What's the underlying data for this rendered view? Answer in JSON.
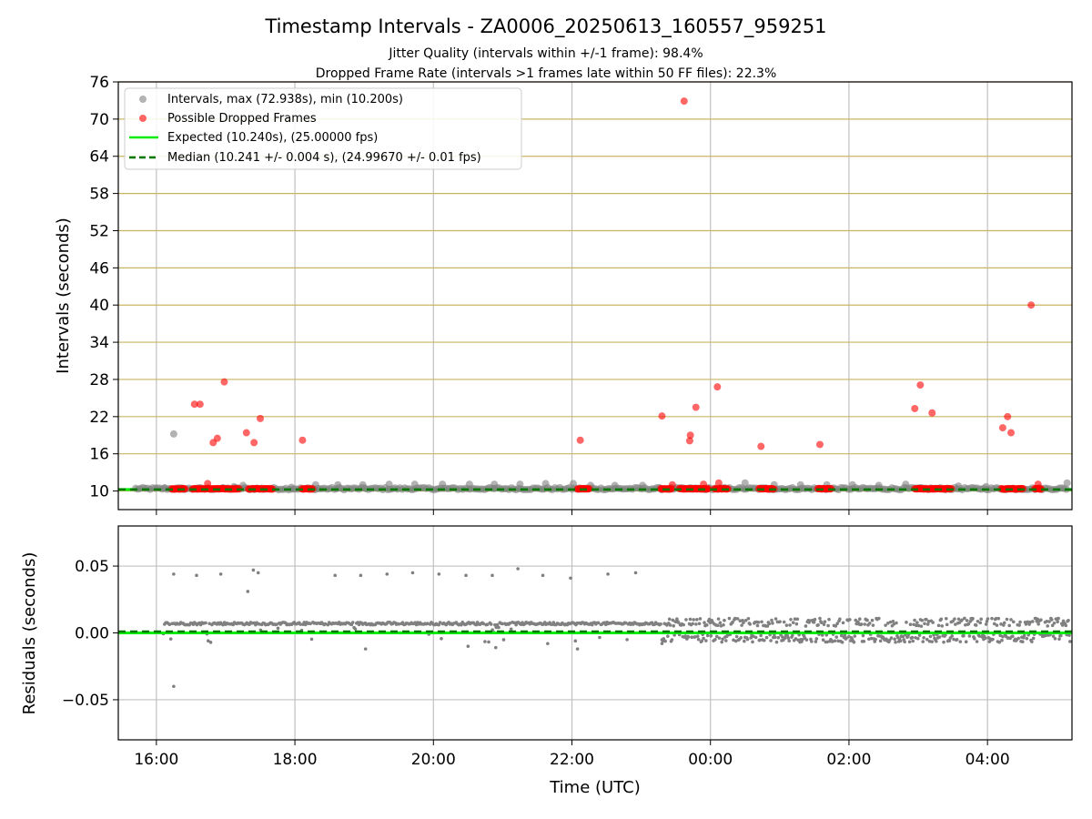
{
  "title": "Timestamp Intervals - ZA0006_20250613_160557_959251",
  "subtitle_1": "Jitter Quality (intervals within +/-1 frame): 98.4%",
  "subtitle_2": "Dropped Frame Rate (intervals >1 frames late within 50 FF files): 22.3%",
  "colors": {
    "intervals": "#808080",
    "dropped": "#ff0000",
    "expected": "#00ee00",
    "median": "#007700",
    "hgrid": "#c8b560",
    "vgrid": "#c0c0c0"
  },
  "chart_data": [
    {
      "type": "scatter",
      "panel": "intervals",
      "xlabel": "",
      "ylabel": "Intervals (seconds)",
      "x_unit": "hours since 00:00 UTC on the first day",
      "xlim": [
        15.45,
        29.22
      ],
      "ylim": [
        7,
        76
      ],
      "x_ticks": [
        16,
        18,
        20,
        22,
        24,
        26,
        28
      ],
      "x_tick_labels": [
        "16:00",
        "18:00",
        "20:00",
        "22:00",
        "00:00",
        "02:00",
        "04:00"
      ],
      "y_ticks": [
        10,
        16,
        22,
        28,
        34,
        40,
        46,
        52,
        58,
        64,
        70,
        76
      ],
      "y_tick_labels": [
        "10",
        "16",
        "22",
        "28",
        "34",
        "40",
        "46",
        "52",
        "58",
        "64",
        "70",
        "76"
      ],
      "grid": true,
      "legend_position": "top-left",
      "legend": [
        {
          "label": "Intervals, max (72.938s), min (10.200s)",
          "kind": "dot",
          "color": "#808080"
        },
        {
          "label": "Possible Dropped Frames",
          "kind": "dot",
          "color": "#ff0000"
        },
        {
          "label": "Expected (10.240s), (25.00000 fps)",
          "kind": "line",
          "color": "#00ee00"
        },
        {
          "label": "Median (10.241 +/- 0.004 s), (24.99670 +/- 0.01 fps)",
          "kind": "dash",
          "color": "#007700"
        }
      ],
      "expected": 10.24,
      "median": 10.241,
      "dropped_points": [
        [
          16.55,
          24.0
        ],
        [
          16.63,
          24.0
        ],
        [
          16.74,
          11.2
        ],
        [
          16.82,
          17.8
        ],
        [
          16.88,
          18.5
        ],
        [
          16.98,
          27.6
        ],
        [
          17.3,
          19.4
        ],
        [
          17.41,
          17.8
        ],
        [
          17.5,
          21.7
        ],
        [
          18.11,
          18.2
        ],
        [
          22.12,
          18.2
        ],
        [
          23.3,
          22.1
        ],
        [
          23.45,
          11.0
        ],
        [
          23.62,
          72.9
        ],
        [
          23.71,
          19.0
        ],
        [
          23.7,
          18.1
        ],
        [
          23.79,
          23.5
        ],
        [
          23.9,
          11.1
        ],
        [
          24.1,
          26.8
        ],
        [
          24.12,
          11.3
        ],
        [
          24.73,
          17.2
        ],
        [
          25.58,
          17.5
        ],
        [
          26.95,
          23.3
        ],
        [
          27.03,
          27.1
        ],
        [
          27.2,
          22.6
        ],
        [
          28.22,
          20.2
        ],
        [
          28.29,
          22.0
        ],
        [
          28.34,
          19.4
        ],
        [
          28.63,
          40.0
        ],
        [
          28.73,
          11.1
        ]
      ],
      "dropped_bands": [
        [
          16.22,
          16.42
        ],
        [
          16.52,
          17.2
        ],
        [
          17.33,
          17.68
        ],
        [
          18.1,
          18.26
        ],
        [
          22.08,
          22.25
        ],
        [
          23.28,
          23.44
        ],
        [
          23.55,
          23.98
        ],
        [
          24.06,
          24.26
        ],
        [
          24.7,
          24.92
        ],
        [
          25.55,
          25.75
        ],
        [
          26.95,
          27.48
        ],
        [
          28.2,
          28.52
        ],
        [
          28.68,
          28.78
        ]
      ],
      "gray_points": [
        [
          16.25,
          19.2
        ],
        [
          16.12,
          10.5
        ],
        [
          17.12,
          10.7
        ],
        [
          17.25,
          10.9
        ],
        [
          17.95,
          10.6
        ],
        [
          18.3,
          11.0
        ],
        [
          18.62,
          11.0
        ],
        [
          18.98,
          11.0
        ],
        [
          19.36,
          11.1
        ],
        [
          19.73,
          11.1
        ],
        [
          20.13,
          11.1
        ],
        [
          20.52,
          11.1
        ],
        [
          20.88,
          11.1
        ],
        [
          21.25,
          11.1
        ],
        [
          21.62,
          11.2
        ],
        [
          22.02,
          11.2
        ],
        [
          22.27,
          10.9
        ],
        [
          22.62,
          10.9
        ],
        [
          23.02,
          10.9
        ],
        [
          24.5,
          11.3
        ],
        [
          24.92,
          11.0
        ],
        [
          25.3,
          11.0
        ],
        [
          25.68,
          11.0
        ],
        [
          26.05,
          11.0
        ],
        [
          26.43,
          10.9
        ],
        [
          26.82,
          11.1
        ],
        [
          27.58,
          10.8
        ],
        [
          27.98,
          10.7
        ],
        [
          29.15,
          11.3
        ]
      ]
    },
    {
      "type": "scatter",
      "panel": "residuals",
      "xlabel": "Time (UTC)",
      "ylabel": "Residuals (seconds)",
      "xlim": [
        15.45,
        29.22
      ],
      "ylim": [
        -0.08,
        0.08
      ],
      "y_ticks": [
        0.05,
        0.0,
        -0.05
      ],
      "y_tick_labels": [
        "0.05",
        "0.00",
        "−0.05"
      ],
      "expected": 0.0,
      "median": 0.001,
      "outliers": [
        [
          16.25,
          0.044
        ],
        [
          16.58,
          0.043
        ],
        [
          16.93,
          0.044
        ],
        [
          17.4,
          0.047
        ],
        [
          17.47,
          0.045
        ],
        [
          17.32,
          0.031
        ],
        [
          16.25,
          -0.04
        ],
        [
          18.58,
          0.043
        ],
        [
          18.95,
          0.043
        ],
        [
          19.33,
          0.044
        ],
        [
          19.7,
          0.045
        ],
        [
          20.08,
          0.044
        ],
        [
          20.47,
          0.043
        ],
        [
          20.85,
          0.043
        ],
        [
          21.22,
          0.048
        ],
        [
          21.58,
          0.043
        ],
        [
          21.98,
          0.041
        ],
        [
          22.52,
          0.044
        ],
        [
          22.92,
          0.045
        ],
        [
          19.02,
          -0.012
        ],
        [
          20.5,
          -0.01
        ],
        [
          20.9,
          -0.011
        ],
        [
          21.65,
          -0.008
        ],
        [
          22.08,
          -0.012
        ],
        [
          22.05,
          -0.006
        ],
        [
          23.3,
          -0.008
        ]
      ]
    }
  ]
}
